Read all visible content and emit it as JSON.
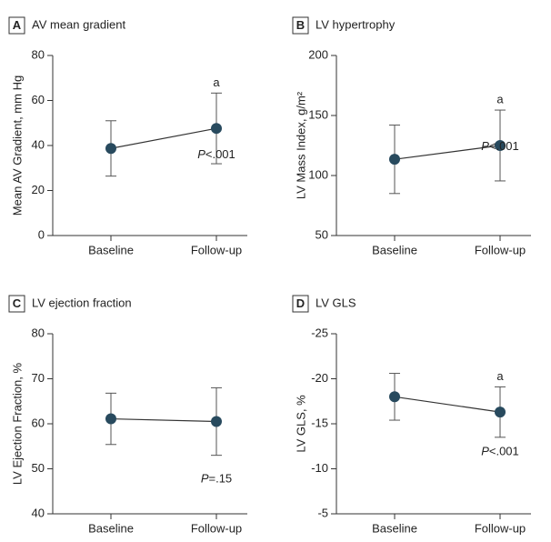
{
  "chart_data": [
    {
      "type": "errorbar",
      "panel": "A",
      "title": "AV mean gradient",
      "ylabel": "Mean AV Gradient, mm Hg",
      "categories": [
        "Baseline",
        "Follow-up"
      ],
      "values": [
        38.7,
        47.6
      ],
      "errors": [
        12.3,
        15.7
      ],
      "ylim": [
        0,
        80
      ],
      "yticks": [
        0,
        20,
        40,
        60,
        80
      ],
      "marker": "a",
      "p_symbol": "P",
      "p_value": "<.001",
      "color": "#284a5e"
    },
    {
      "type": "errorbar",
      "panel": "B",
      "title": "LV hypertrophy",
      "ylabel": "LV Mass Index, g/m²",
      "categories": [
        "Baseline",
        "Follow-up"
      ],
      "values": [
        113.5,
        125
      ],
      "errors": [
        28.5,
        29.5
      ],
      "ylim": [
        50,
        200
      ],
      "yticks": [
        50,
        100,
        150,
        200
      ],
      "marker": "a",
      "p_symbol": "P",
      "p_value": "<.001",
      "color": "#284a5e"
    },
    {
      "type": "errorbar",
      "panel": "C",
      "title": "LV ejection fraction",
      "ylabel": "LV Ejection Fraction, %",
      "categories": [
        "Baseline",
        "Follow-up"
      ],
      "values": [
        61.1,
        60.5
      ],
      "errors": [
        5.7,
        7.5
      ],
      "ylim": [
        40,
        80
      ],
      "yticks": [
        40,
        50,
        60,
        70,
        80
      ],
      "p_symbol": "P",
      "p_value": "=.15",
      "color": "#284a5e"
    },
    {
      "type": "errorbar",
      "panel": "D",
      "title": "LV GLS",
      "ylabel": "LV GLS, %",
      "categories": [
        "Baseline",
        "Follow-up"
      ],
      "values": [
        -18,
        -16.3
      ],
      "errors": [
        2.6,
        2.8
      ],
      "ylim": [
        -5,
        -25
      ],
      "yticks": [
        -25,
        -20,
        -15,
        -10,
        -5
      ],
      "marker": "a",
      "p_symbol": "P",
      "p_value": "<.001",
      "color": "#284a5e"
    }
  ]
}
